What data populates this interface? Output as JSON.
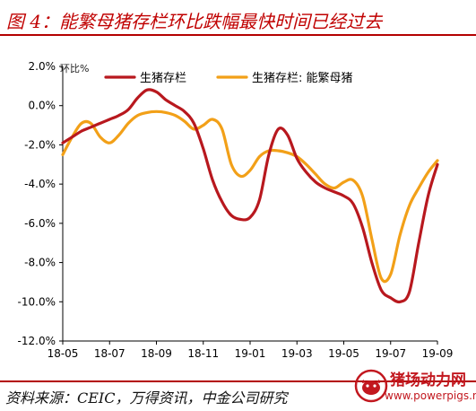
{
  "title": "图 4：能繁母猪存栏环比跌幅最快时间已经过去",
  "source": "资料来源：CEIC，万得资讯，中金公司研究",
  "watermark": {
    "name": "猪场动力网",
    "url": "www.powerpigs.net"
  },
  "colors": {
    "title": "#c00000",
    "rule": "#b30000",
    "series1": "#b8181e",
    "series2": "#f2a018"
  },
  "chart_data": {
    "type": "line",
    "ylabel": "环比%",
    "ylim": [
      -12,
      2
    ],
    "yticks": [
      2,
      0,
      -2,
      -4,
      -6,
      -8,
      -10,
      -12
    ],
    "ytick_labels": [
      "2.0%",
      "0.0%",
      "-2.0%",
      "-4.0%",
      "-6.0%",
      "-8.0%",
      "-10.0%",
      "-12.0%"
    ],
    "x_labels": [
      "18-05",
      "18-07",
      "18-09",
      "18-11",
      "19-01",
      "19-03",
      "19-05",
      "19-07",
      "19-09"
    ],
    "x_positions": [
      0,
      2,
      4,
      6,
      8,
      10,
      12,
      14,
      16
    ],
    "x": [
      0,
      0.4,
      0.8,
      1.2,
      1.6,
      2.0,
      2.4,
      2.8,
      3.2,
      3.6,
      4.0,
      4.4,
      4.8,
      5.2,
      5.6,
      6.0,
      6.4,
      6.8,
      7.2,
      7.6,
      8.0,
      8.4,
      8.8,
      9.2,
      9.6,
      10.0,
      10.4,
      10.8,
      11.2,
      11.6,
      12.0,
      12.4,
      12.8,
      13.2,
      13.6,
      14.0,
      14.4,
      14.8,
      15.2,
      15.6,
      16.0
    ],
    "series": [
      {
        "name": "生猪存栏",
        "values": [
          -1.9,
          -1.6,
          -1.3,
          -1.1,
          -0.9,
          -0.7,
          -0.5,
          -0.2,
          0.4,
          0.8,
          0.7,
          0.3,
          0.0,
          -0.3,
          -0.9,
          -2.2,
          -3.8,
          -4.9,
          -5.6,
          -5.8,
          -5.7,
          -4.8,
          -2.5,
          -1.2,
          -1.5,
          -2.7,
          -3.4,
          -3.9,
          -4.2,
          -4.4,
          -4.6,
          -5.0,
          -6.2,
          -8.0,
          -9.4,
          -9.8,
          -10.0,
          -9.5,
          -7.0,
          -4.6,
          -3.0
        ]
      },
      {
        "name": "生猪存栏: 能繁母猪",
        "values": [
          -2.5,
          -1.6,
          -0.9,
          -0.9,
          -1.6,
          -1.9,
          -1.5,
          -0.9,
          -0.5,
          -0.35,
          -0.3,
          -0.35,
          -0.5,
          -0.8,
          -1.2,
          -1.0,
          -0.7,
          -1.2,
          -3.0,
          -3.6,
          -3.3,
          -2.6,
          -2.3,
          -2.3,
          -2.4,
          -2.6,
          -3.0,
          -3.5,
          -4.0,
          -4.2,
          -3.9,
          -3.8,
          -4.6,
          -6.8,
          -8.8,
          -8.6,
          -6.6,
          -5.1,
          -4.2,
          -3.4,
          -2.8
        ]
      }
    ],
    "legend": "top-right",
    "grid": false
  }
}
